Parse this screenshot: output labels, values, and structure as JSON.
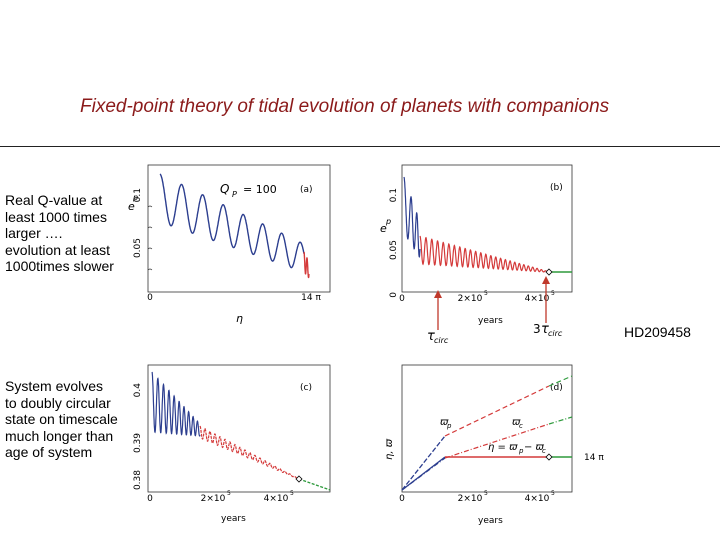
{
  "slide": {
    "title": "Fixed-point theory of tidal evolution of planets with companions",
    "note_top": [
      "Real Q-value at",
      "least 1000 times",
      "larger ….",
      "evolution at least",
      "1000times slower"
    ],
    "note_bottom": [
      "System evolves",
      "to doubly circular",
      "state on timescale",
      "much longer than",
      "age of system"
    ],
    "system_label": "HD209458"
  },
  "figure": {
    "panel_a": {
      "tag": "(a)",
      "y_label": "e",
      "y_sub": "p",
      "annotation": "Q",
      "annotation_sub": "P",
      "annotation_value": "= 100",
      "y_ticks": [
        "0.1",
        "0.05",
        "0"
      ],
      "x_ticks": [
        "0",
        "14 π"
      ],
      "x_label": "η"
    },
    "panel_b": {
      "tag": "(b)",
      "y_label": "e",
      "y_sub": "p",
      "y_ticks": [
        "0.1",
        "0.05",
        "0"
      ],
      "x_ticks": [
        "0",
        "2×10",
        "4×10"
      ],
      "x_tick_exp": "5",
      "x_label": "years",
      "marker_1": "τ",
      "marker_1_sub": "circ",
      "marker_2_prefix": "3",
      "marker_2": "τ",
      "marker_2_sub": "circ"
    },
    "panel_c": {
      "tag": "(c)",
      "y_ticks": [
        "0.4",
        "0.39",
        "0.38"
      ],
      "x_ticks": [
        "0",
        "2×10",
        "4×10"
      ],
      "x_tick_exp": "5",
      "x_label": "years"
    },
    "panel_d": {
      "tag": "(d)",
      "y_label": "η, ϖ",
      "y_label_rest": ", ϖ",
      "y_sub_p": "p",
      "y_sub_c": "c",
      "line_p": "ϖ",
      "line_p_sub": "p",
      "line_c": "ϖ",
      "line_c_sub": "c",
      "eq": "η = ϖ",
      "eq_sub_p": "p",
      "eq_mid": " − ϖ",
      "eq_sub_c": "c",
      "eq_value": "14 π",
      "x_ticks": [
        "0",
        "2×10",
        "4×10"
      ],
      "x_tick_exp": "5",
      "x_label": "years"
    }
  },
  "colors": {
    "title": "#8b1a1a",
    "early_curve": "#2c3e8f",
    "late_curve": "#d43a3a",
    "final_curve": "#2e9a3c",
    "arrow": "#c0392b"
  }
}
